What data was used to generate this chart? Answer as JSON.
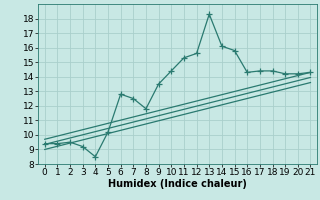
{
  "x": [
    0,
    1,
    2,
    3,
    4,
    5,
    6,
    7,
    8,
    9,
    10,
    11,
    12,
    13,
    14,
    15,
    16,
    17,
    18,
    19,
    20,
    21
  ],
  "y": [
    9.4,
    9.4,
    9.5,
    9.2,
    8.5,
    10.2,
    12.8,
    12.5,
    11.8,
    13.5,
    14.4,
    15.3,
    15.6,
    18.3,
    16.1,
    15.8,
    14.3,
    14.4,
    14.4,
    14.2,
    14.2,
    14.3
  ],
  "regression_lines": [
    {
      "x0": 0,
      "y0": 9.0,
      "x1": 21,
      "y1": 13.6
    },
    {
      "x0": 0,
      "y0": 9.35,
      "x1": 21,
      "y1": 13.95
    },
    {
      "x0": 0,
      "y0": 9.7,
      "x1": 21,
      "y1": 14.3
    }
  ],
  "line_color": "#2a7a70",
  "bg_color": "#c8e8e4",
  "grid_color": "#aacfcc",
  "xlabel": "Humidex (Indice chaleur)",
  "xlim": [
    -0.5,
    21.5
  ],
  "ylim": [
    8,
    19
  ],
  "xticks": [
    0,
    1,
    2,
    3,
    4,
    5,
    6,
    7,
    8,
    9,
    10,
    11,
    12,
    13,
    14,
    15,
    16,
    17,
    18,
    19,
    20,
    21
  ],
  "yticks": [
    8,
    9,
    10,
    11,
    12,
    13,
    14,
    15,
    16,
    17,
    18
  ],
  "marker": "+",
  "markersize": 4,
  "linewidth": 0.9,
  "xlabel_fontsize": 7,
  "tick_fontsize": 6.5
}
